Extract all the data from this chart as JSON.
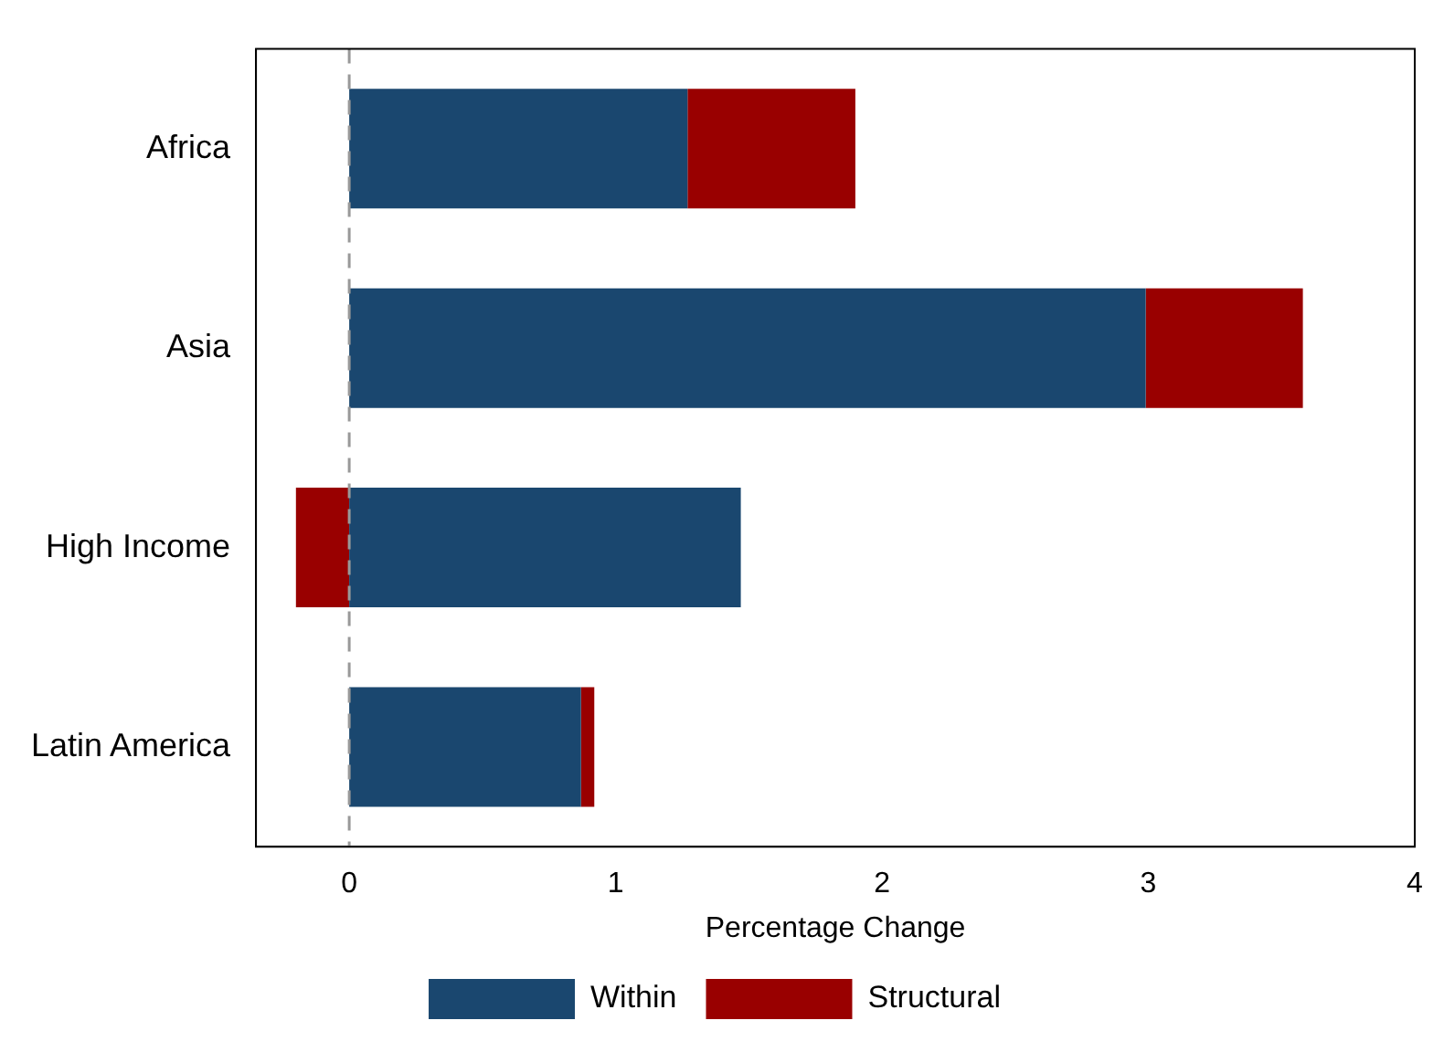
{
  "chart_data": {
    "type": "bar",
    "orientation": "horizontal",
    "stacked": true,
    "xlabel": "Percentage Change",
    "categories": [
      "Africa",
      "Asia",
      "High Income",
      "Latin America"
    ],
    "series": [
      {
        "name": "Within",
        "color": "#1a476f",
        "values": [
          1.27,
          2.99,
          1.47,
          0.87
        ]
      },
      {
        "name": "Structural",
        "color": "#990000",
        "values": [
          0.63,
          0.59,
          -0.2,
          0.05
        ]
      }
    ],
    "xlim": [
      -0.35,
      4
    ],
    "xticks": [
      0,
      1,
      2,
      3,
      4
    ],
    "grid": false,
    "legend": "bottom",
    "ref_lines": [
      {
        "axis": "x",
        "value": 0,
        "color": "#999999",
        "line_style": "dashed"
      }
    ]
  }
}
